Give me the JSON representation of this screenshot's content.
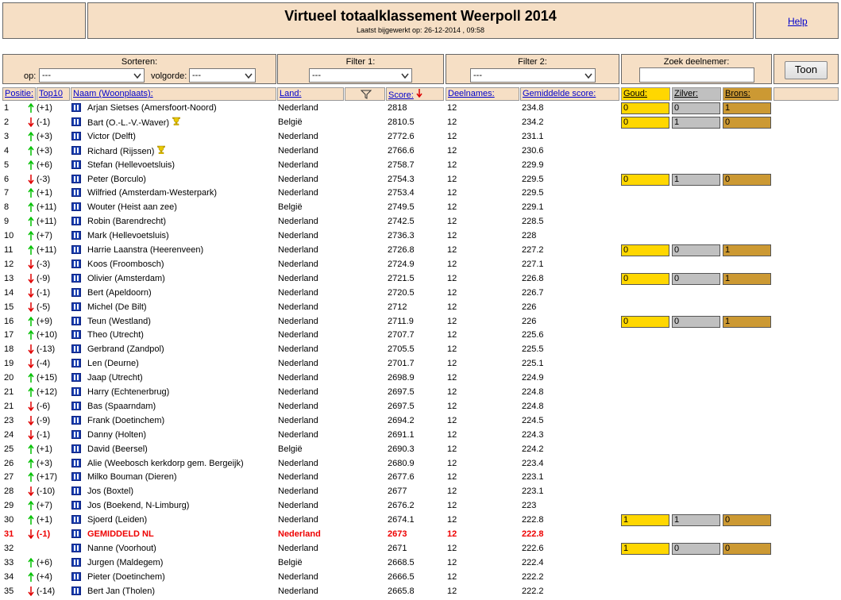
{
  "header": {
    "title": "Virtueel totaalklassement Weerpoll 2014",
    "subtitle": "Laatst bijgewerkt op: 26-12-2014 , 09:58",
    "help": "Help"
  },
  "controls": {
    "sort_label": "Sorteren:",
    "sort_on_label": "op:",
    "sort_on_value": "---",
    "order_label": "volgorde:",
    "order_value": "---",
    "filter1_label": "Filter 1:",
    "filter1_value": "---",
    "filter2_label": "Filter 2:",
    "filter2_value": "---",
    "search_label": "Zoek deelnemer:",
    "button": "Toon"
  },
  "table": {
    "columns": {
      "pos": "Positie:",
      "top10": "Top10",
      "name": "Naam (Woonplaats):",
      "land": "Land:",
      "score": "Score:",
      "deelnames": "Deelnames:",
      "avg": "Gemiddelde score:",
      "gold": "Goud:",
      "silver": "Zilver:",
      "bronze": "Brons:"
    },
    "rows": [
      {
        "pos": 1,
        "trend": "up",
        "change": "(+1)",
        "name": "Arjan Sietses (Amersfoort-Noord)",
        "land": "Nederland",
        "score": 2818,
        "deelnames": 12,
        "avg": 234.8,
        "medals": [
          0,
          0,
          1
        ]
      },
      {
        "pos": 2,
        "trend": "down",
        "change": "(-1)",
        "name": "Bart (O.-L.-V.-Waver)",
        "trophy": true,
        "land": "België",
        "score": 2810.5,
        "deelnames": 12,
        "avg": 234.2,
        "medals": [
          0,
          1,
          0
        ]
      },
      {
        "pos": 3,
        "trend": "up",
        "change": "(+3)",
        "name": "Victor (Delft)",
        "land": "Nederland",
        "score": 2772.6,
        "deelnames": 12,
        "avg": 231.1
      },
      {
        "pos": 4,
        "trend": "up",
        "change": "(+3)",
        "name": "Richard (Rijssen)",
        "trophy": true,
        "land": "Nederland",
        "score": 2766.6,
        "deelnames": 12,
        "avg": 230.6
      },
      {
        "pos": 5,
        "trend": "up",
        "change": "(+6)",
        "name": "Stefan (Hellevoetsluis)",
        "land": "Nederland",
        "score": 2758.7,
        "deelnames": 12,
        "avg": 229.9
      },
      {
        "pos": 6,
        "trend": "down",
        "change": "(-3)",
        "name": "Peter (Borculo)",
        "land": "Nederland",
        "score": 2754.3,
        "deelnames": 12,
        "avg": 229.5,
        "medals": [
          0,
          1,
          0
        ]
      },
      {
        "pos": 7,
        "trend": "up",
        "change": "(+1)",
        "name": "Wilfried (Amsterdam-Westerpark)",
        "land": "Nederland",
        "score": 2753.4,
        "deelnames": 12,
        "avg": 229.5
      },
      {
        "pos": 8,
        "trend": "up",
        "change": "(+11)",
        "name": "Wouter (Heist aan zee)",
        "land": "België",
        "score": 2749.5,
        "deelnames": 12,
        "avg": 229.1
      },
      {
        "pos": 9,
        "trend": "up",
        "change": "(+11)",
        "name": "Robin (Barendrecht)",
        "land": "Nederland",
        "score": 2742.5,
        "deelnames": 12,
        "avg": 228.5
      },
      {
        "pos": 10,
        "trend": "up",
        "change": "(+7)",
        "name": "Mark (Hellevoetsluis)",
        "land": "Nederland",
        "score": 2736.3,
        "deelnames": 12,
        "avg": 228
      },
      {
        "pos": 11,
        "trend": "up",
        "change": "(+11)",
        "name": "Harrie Laanstra (Heerenveen)",
        "land": "Nederland",
        "score": 2726.8,
        "deelnames": 12,
        "avg": 227.2,
        "medals": [
          0,
          0,
          1
        ]
      },
      {
        "pos": 12,
        "trend": "down",
        "change": "(-3)",
        "name": "Koos (Froombosch)",
        "land": "Nederland",
        "score": 2724.9,
        "deelnames": 12,
        "avg": 227.1
      },
      {
        "pos": 13,
        "trend": "down",
        "change": "(-9)",
        "name": "Olivier (Amsterdam)",
        "land": "Nederland",
        "score": 2721.5,
        "deelnames": 12,
        "avg": 226.8,
        "medals": [
          0,
          0,
          1
        ]
      },
      {
        "pos": 14,
        "trend": "down",
        "change": "(-1)",
        "name": "Bert (Apeldoorn)",
        "land": "Nederland",
        "score": 2720.5,
        "deelnames": 12,
        "avg": 226.7
      },
      {
        "pos": 15,
        "trend": "down",
        "change": "(-5)",
        "name": "Michel (De Bilt)",
        "land": "Nederland",
        "score": 2712,
        "deelnames": 12,
        "avg": 226
      },
      {
        "pos": 16,
        "trend": "up",
        "change": "(+9)",
        "name": "Teun (Westland)",
        "land": "Nederland",
        "score": 2711.9,
        "deelnames": 12,
        "avg": 226,
        "medals": [
          0,
          0,
          1
        ]
      },
      {
        "pos": 17,
        "trend": "up",
        "change": "(+10)",
        "name": "Theo (Utrecht)",
        "land": "Nederland",
        "score": 2707.7,
        "deelnames": 12,
        "avg": 225.6
      },
      {
        "pos": 18,
        "trend": "down",
        "change": "(-13)",
        "name": "Gerbrand (Zandpol)",
        "land": "Nederland",
        "score": 2705.5,
        "deelnames": 12,
        "avg": 225.5
      },
      {
        "pos": 19,
        "trend": "down",
        "change": "(-4)",
        "name": "Len (Deurne)",
        "land": "Nederland",
        "score": 2701.7,
        "deelnames": 12,
        "avg": 225.1
      },
      {
        "pos": 20,
        "trend": "up",
        "change": "(+15)",
        "name": "Jaap (Utrecht)",
        "land": "Nederland",
        "score": 2698.9,
        "deelnames": 12,
        "avg": 224.9
      },
      {
        "pos": 21,
        "trend": "up",
        "change": "(+12)",
        "name": "Harry (Echtenerbrug)",
        "land": "Nederland",
        "score": 2697.5,
        "deelnames": 12,
        "avg": 224.8
      },
      {
        "pos": 21,
        "trend": "down",
        "change": "(-6)",
        "name": "Bas (Spaarndam)",
        "land": "Nederland",
        "score": 2697.5,
        "deelnames": 12,
        "avg": 224.8
      },
      {
        "pos": 23,
        "trend": "down",
        "change": "(-9)",
        "name": "Frank (Doetinchem)",
        "land": "Nederland",
        "score": 2694.2,
        "deelnames": 12,
        "avg": 224.5
      },
      {
        "pos": 24,
        "trend": "down",
        "change": "(-1)",
        "name": "Danny (Holten)",
        "land": "Nederland",
        "score": 2691.1,
        "deelnames": 12,
        "avg": 224.3
      },
      {
        "pos": 25,
        "trend": "up",
        "change": "(+1)",
        "name": "David (Beersel)",
        "land": "België",
        "score": 2690.3,
        "deelnames": 12,
        "avg": 224.2
      },
      {
        "pos": 26,
        "trend": "up",
        "change": "(+3)",
        "name": "Alie (Weebosch kerkdorp gem. Bergeijk)",
        "land": "Nederland",
        "score": 2680.9,
        "deelnames": 12,
        "avg": 223.4
      },
      {
        "pos": 27,
        "trend": "up",
        "change": "(+17)",
        "name": "Milko Bouman (Dieren)",
        "land": "Nederland",
        "score": 2677.6,
        "deelnames": 12,
        "avg": 223.1
      },
      {
        "pos": 28,
        "trend": "down",
        "change": "(-10)",
        "name": "Jos (Boxtel)",
        "land": "Nederland",
        "score": 2677,
        "deelnames": 12,
        "avg": 223.1
      },
      {
        "pos": 29,
        "trend": "up",
        "change": "(+7)",
        "name": "Jos (Boekend, N-Limburg)",
        "land": "Nederland",
        "score": 2676.2,
        "deelnames": 12,
        "avg": 223
      },
      {
        "pos": 30,
        "trend": "up",
        "change": "(+1)",
        "name": "Sjoerd (Leiden)",
        "land": "Nederland",
        "score": 2674.1,
        "deelnames": 12,
        "avg": 222.8,
        "medals": [
          1,
          1,
          0
        ]
      },
      {
        "pos": 31,
        "trend": "down",
        "change": "(-1)",
        "name": "GEMIDDELD NL",
        "land": "Nederland",
        "score": 2673,
        "deelnames": 12,
        "avg": 222.8,
        "highlight": true
      },
      {
        "pos": 32,
        "name": "Nanne (Voorhout)",
        "land": "Nederland",
        "score": 2671,
        "deelnames": 12,
        "avg": 222.6,
        "medals": [
          1,
          0,
          0
        ]
      },
      {
        "pos": 33,
        "trend": "up",
        "change": "(+6)",
        "name": "Jurgen (Maldegem)",
        "land": "België",
        "score": 2668.5,
        "deelnames": 12,
        "avg": 222.4
      },
      {
        "pos": 34,
        "trend": "up",
        "change": "(+4)",
        "name": "Pieter (Doetinchem)",
        "land": "Nederland",
        "score": 2666.5,
        "deelnames": 12,
        "avg": 222.2
      },
      {
        "pos": 35,
        "trend": "down",
        "change": "(-14)",
        "name": "Bert Jan (Tholen)",
        "land": "Nederland",
        "score": 2665.8,
        "deelnames": 12,
        "avg": 222.2
      }
    ]
  }
}
